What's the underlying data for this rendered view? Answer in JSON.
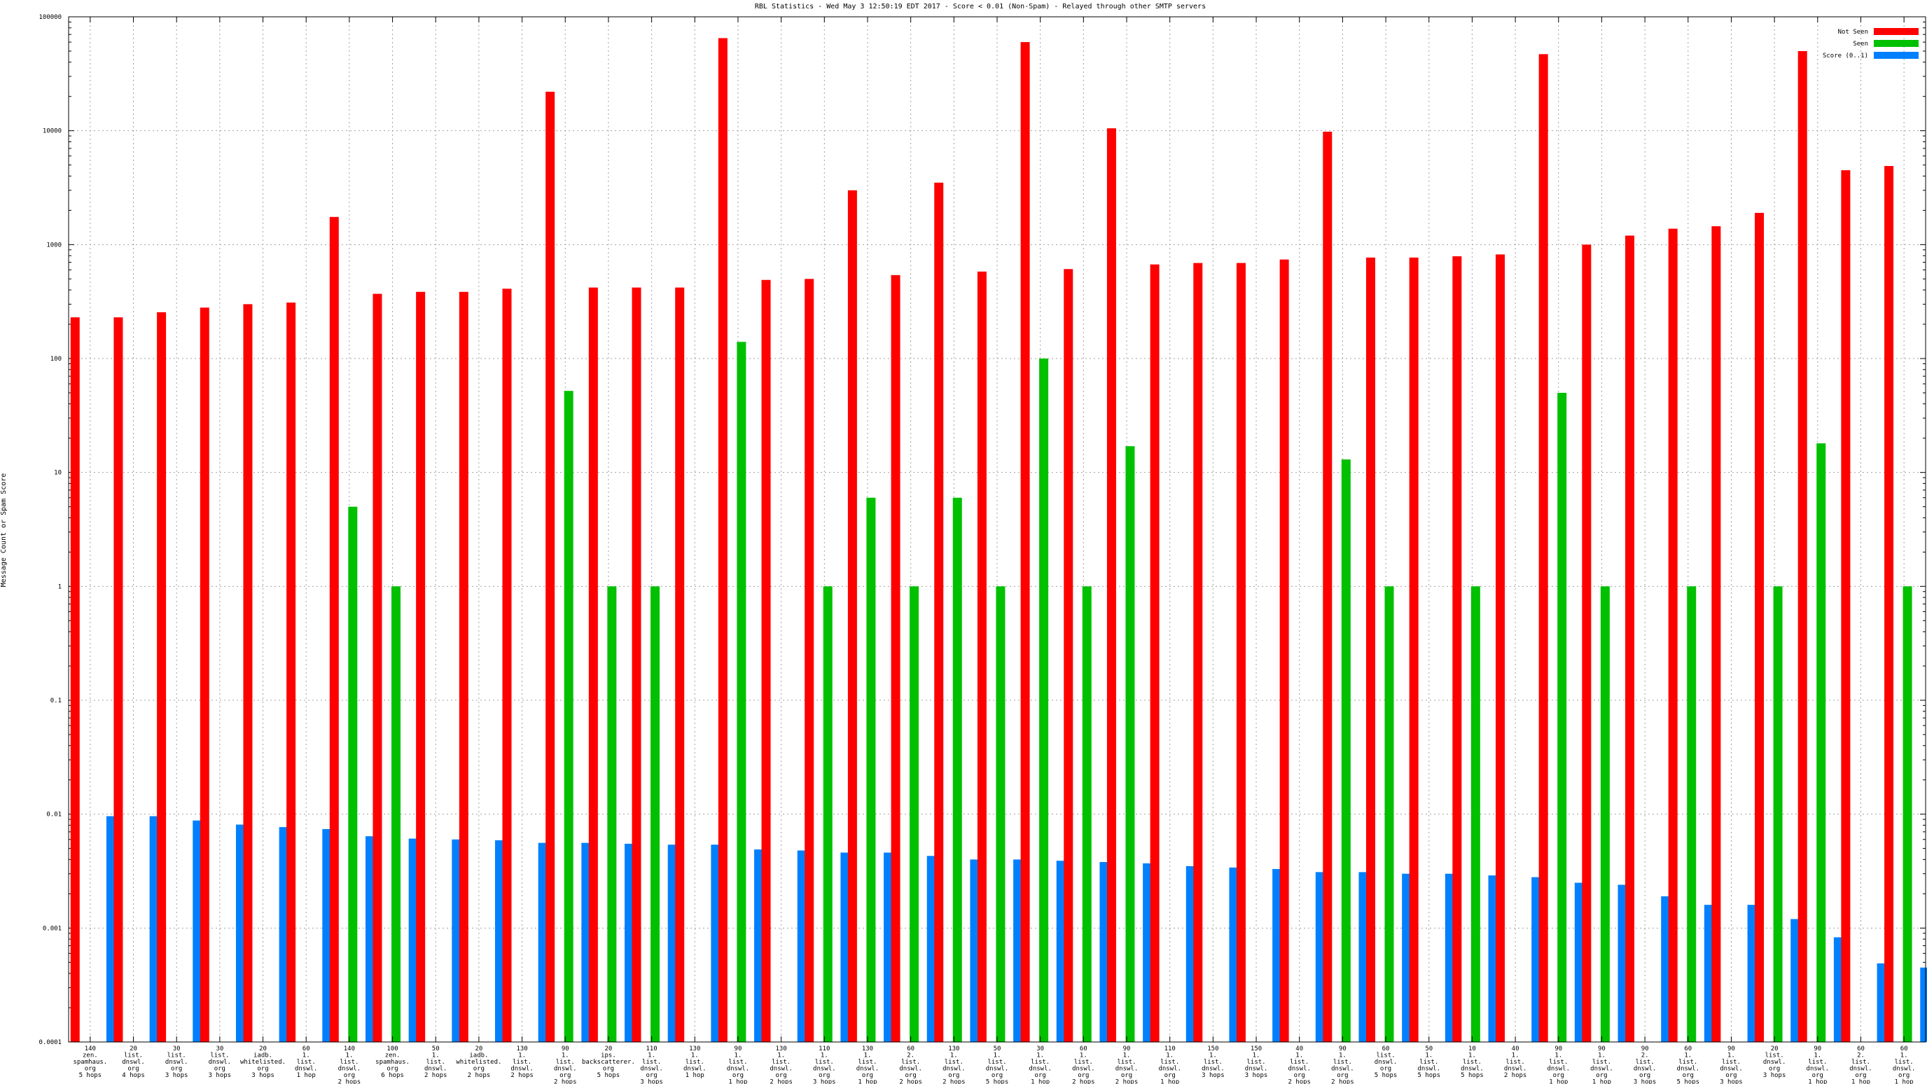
{
  "chart_data": {
    "type": "bar",
    "title": "RBL Statistics - Wed May  3 12:50:19 EDT 2017 - Score < 0.01 (Non-Spam) - Relayed through other SMTP servers",
    "ylabel": "Message Count or Spam Score",
    "xlabel": "",
    "yscale": "log",
    "ylim": [
      0.0001,
      100000
    ],
    "yticks": [
      {
        "v": 100000,
        "label": "100000"
      },
      {
        "v": 10000,
        "label": "10000"
      },
      {
        "v": 1000,
        "label": "1000"
      },
      {
        "v": 100,
        "label": "100"
      },
      {
        "v": 10,
        "label": "10"
      },
      {
        "v": 1,
        "label": "1"
      },
      {
        "v": 0.1,
        "label": "0.1"
      },
      {
        "v": 0.01,
        "label": "0.01"
      },
      {
        "v": 0.001,
        "label": "0.001"
      },
      {
        "v": 0.0001,
        "label": "0.0001"
      }
    ],
    "grid": true,
    "legend_position": "top-right",
    "categories": [
      [
        "140",
        "zen.",
        "spamhaus.",
        "org",
        "5 hops"
      ],
      [
        "20",
        "list.",
        "dnswl.",
        "org",
        "4 hops"
      ],
      [
        "30",
        "list.",
        "dnswl.",
        "org",
        "3 hops"
      ],
      [
        "30",
        "list.",
        "dnswl.",
        "org",
        "3 hops"
      ],
      [
        "20",
        "iadb.",
        "whitelisted.",
        "org",
        "3 hops"
      ],
      [
        "60",
        "1.",
        "list.",
        "dnswl.",
        "1 hop"
      ],
      [
        "140",
        "1.",
        "list.",
        "dnswl.",
        "org",
        "2 hops"
      ],
      [
        "100",
        "zen.",
        "spamhaus.",
        "org",
        "6 hops"
      ],
      [
        "50",
        "1.",
        "list.",
        "dnswl.",
        "2 hops"
      ],
      [
        "20",
        "iadb.",
        "whitelisted.",
        "org",
        "2 hops"
      ],
      [
        "130",
        "1.",
        "list.",
        "dnswl.",
        "2 hops"
      ],
      [
        "90",
        "1.",
        "list.",
        "dnswl.",
        "org",
        "2 hops"
      ],
      [
        "20",
        "ips.",
        "backscatterer.",
        "org",
        "5 hops"
      ],
      [
        "110",
        "1.",
        "list.",
        "dnswl.",
        "org",
        "3 hops"
      ],
      [
        "130",
        "1.",
        "list.",
        "dnswl.",
        "1 hop"
      ],
      [
        "90",
        "1.",
        "list.",
        "dnswl.",
        "org",
        "1 hop"
      ],
      [
        "130",
        "1.",
        "list.",
        "dnswl.",
        "org",
        "2 hops"
      ],
      [
        "110",
        "1.",
        "list.",
        "dnswl.",
        "org",
        "3 hops"
      ],
      [
        "130",
        "1.",
        "list.",
        "dnswl.",
        "org",
        "1 hop"
      ],
      [
        "60",
        "2.",
        "list.",
        "dnswl.",
        "org",
        "2 hops"
      ],
      [
        "130",
        "1.",
        "list.",
        "dnswl.",
        "org",
        "2 hops"
      ],
      [
        "50",
        "1.",
        "list.",
        "dnswl.",
        "org",
        "5 hops"
      ],
      [
        "30",
        "1.",
        "list.",
        "dnswl.",
        "org",
        "1 hop"
      ],
      [
        "60",
        "1.",
        "list.",
        "dnswl.",
        "org",
        "2 hops"
      ],
      [
        "90",
        "1.",
        "list.",
        "dnswl.",
        "org",
        "2 hops"
      ],
      [
        "110",
        "1.",
        "list.",
        "dnswl.",
        "org",
        "1 hop"
      ],
      [
        "150",
        "1.",
        "list.",
        "dnswl.",
        "3 hops"
      ],
      [
        "150",
        "1.",
        "list.",
        "dnswl.",
        "3 hops"
      ],
      [
        "40",
        "1.",
        "list.",
        "dnswl.",
        "org",
        "2 hops"
      ],
      [
        "90",
        "1.",
        "list.",
        "dnswl.",
        "org",
        "2 hops"
      ],
      [
        "60",
        "list.",
        "dnswl.",
        "org",
        "5 hops"
      ],
      [
        "50",
        "1.",
        "list.",
        "dnswl.",
        "5 hops"
      ],
      [
        "10",
        "1.",
        "list.",
        "dnswl.",
        "5 hops"
      ],
      [
        "40",
        "1.",
        "list.",
        "dnswl.",
        "2 hops"
      ],
      [
        "90",
        "1.",
        "list.",
        "dnswl.",
        "org",
        "1 hop"
      ],
      [
        "90",
        "1.",
        "list.",
        "dnswl.",
        "org",
        "1 hop"
      ],
      [
        "90",
        "2.",
        "list.",
        "dnswl.",
        "org",
        "3 hops"
      ],
      [
        "60",
        "1.",
        "list.",
        "dnswl.",
        "org",
        "5 hops"
      ],
      [
        "90",
        "1.",
        "list.",
        "dnswl.",
        "org",
        "3 hops"
      ],
      [
        "20",
        "list.",
        "dnswl.",
        "org",
        "3 hops"
      ],
      [
        "90",
        "1.",
        "list.",
        "dnswl.",
        "org",
        "1 hop"
      ],
      [
        "60",
        "2.",
        "list.",
        "dnswl.",
        "org",
        "1 hop"
      ],
      [
        "60",
        "1.",
        "list.",
        "dnswl.",
        "org",
        "1 hop"
      ]
    ],
    "series": [
      {
        "name": "Not Seen",
        "color": "#ff0000",
        "values": [
          230,
          230,
          255,
          280,
          300,
          310,
          1750,
          370,
          385,
          385,
          410,
          22000,
          420,
          420,
          420,
          65000,
          490,
          500,
          3000,
          540,
          3500,
          580,
          60000,
          610,
          10500,
          670,
          690,
          690,
          740,
          9800,
          770,
          770,
          790,
          820,
          47000,
          1000,
          1200,
          1380,
          1450,
          1900,
          50000,
          4500,
          4900
        ]
      },
      {
        "name": "Seen",
        "color": "#00c000",
        "values": [
          null,
          null,
          null,
          null,
          null,
          null,
          5.0,
          1,
          null,
          null,
          null,
          52,
          1,
          1,
          null,
          140,
          null,
          1,
          6,
          1,
          6,
          1,
          100,
          1,
          17,
          null,
          null,
          null,
          null,
          13,
          1,
          null,
          1,
          null,
          50,
          1,
          null,
          1,
          null,
          1,
          18,
          null,
          1
        ]
      },
      {
        "name": "Score (0..1)",
        "color": "#0080ff",
        "values": [
          0.0096,
          0.0096,
          0.0088,
          0.0081,
          0.0077,
          0.0074,
          0.0064,
          0.0061,
          0.006,
          0.0059,
          0.0056,
          0.0056,
          0.0055,
          0.0054,
          0.0054,
          0.0049,
          0.0048,
          0.0046,
          0.0046,
          0.0043,
          0.004,
          0.004,
          0.0039,
          0.0038,
          0.0037,
          0.0035,
          0.0034,
          0.0033,
          0.0031,
          0.0031,
          0.003,
          0.003,
          0.0029,
          0.0028,
          0.0025,
          0.0024,
          0.0019,
          0.0016,
          0.0016,
          0.0012,
          0.00083,
          0.00049,
          0.00045
        ]
      }
    ]
  }
}
